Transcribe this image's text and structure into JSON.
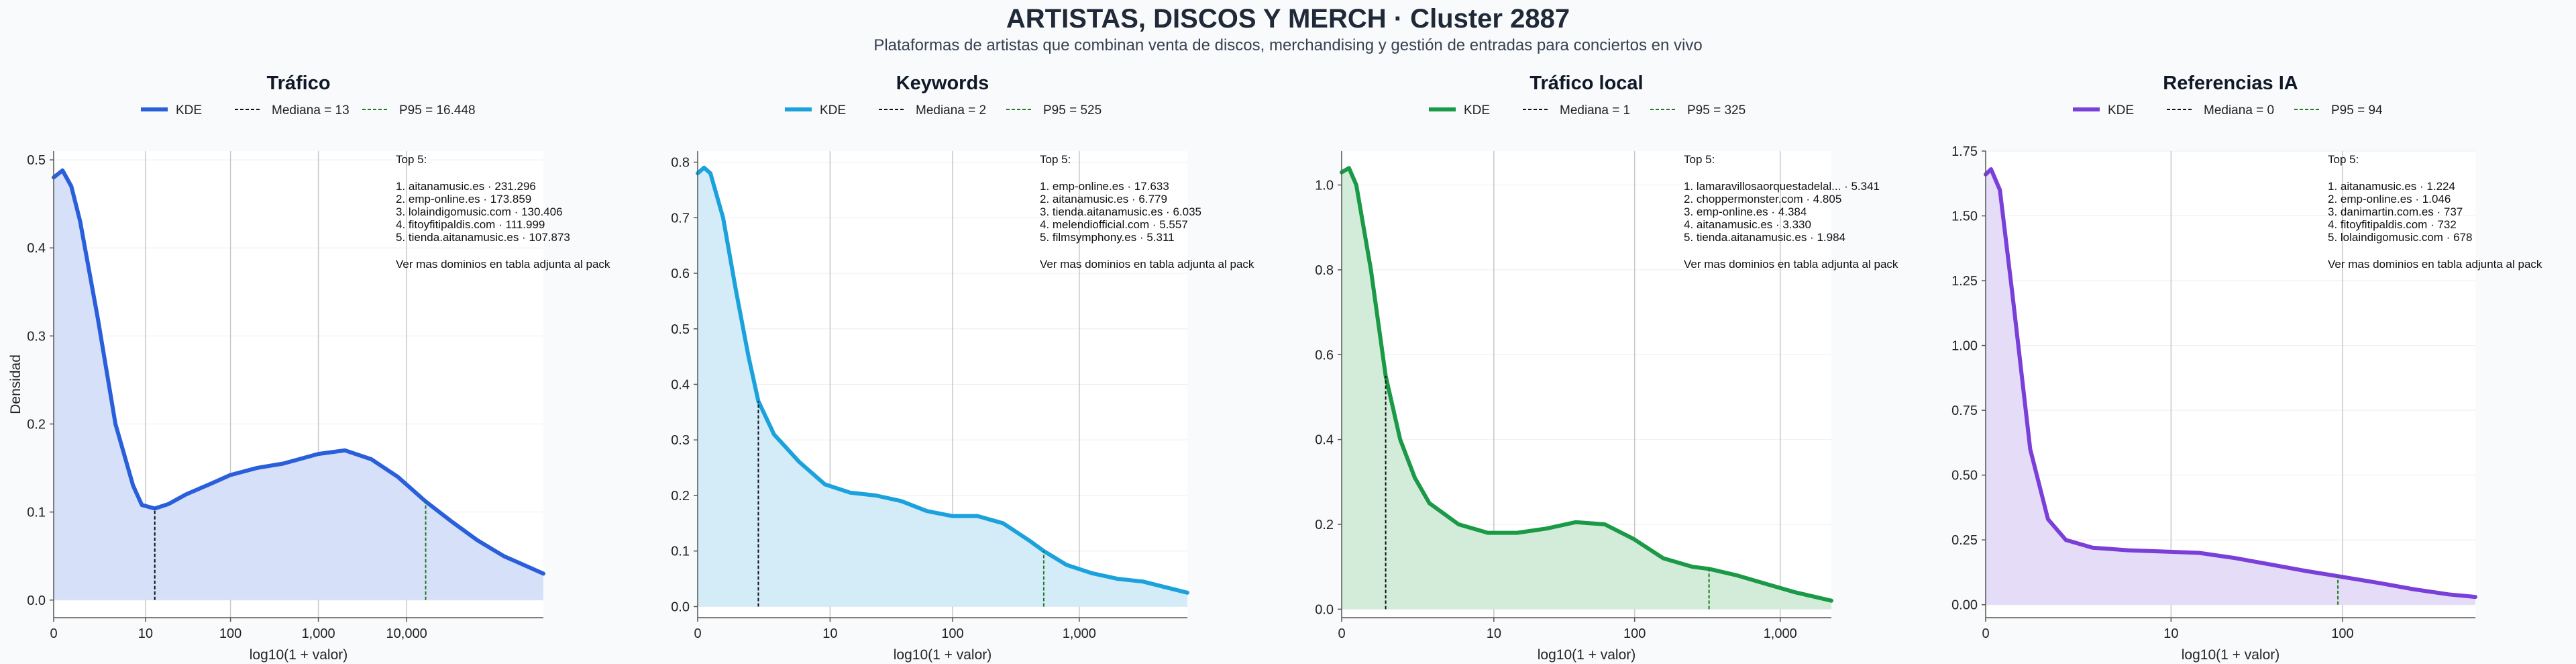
{
  "title": "ARTISTAS, DISCOS Y MERCH · Cluster 2887",
  "subtitle": "Plataformas de artistas que combinan venta de discos, merchandising y gestión de entradas para conciertos en vivo",
  "chart_data": [
    {
      "type": "area",
      "title": "Tráfico",
      "xlabel": "log10(1 + valor)",
      "ylabel": "Densidad",
      "color": "#2a5fdb",
      "fill": "#d6e0f8",
      "p95_color": "#1e7a1e",
      "xlim": [
        0,
        5.55
      ],
      "ylim": [
        -0.02,
        0.51
      ],
      "x_ticks": [
        {
          "v": 0,
          "label": "0"
        },
        {
          "v": 1.041,
          "label": "10"
        },
        {
          "v": 2.004,
          "label": "100"
        },
        {
          "v": 3.0,
          "label": "1,000"
        },
        {
          "v": 4.0,
          "label": "10,000"
        }
      ],
      "y_ticks": [
        0.0,
        0.1,
        0.2,
        0.3,
        0.4,
        0.5
      ],
      "y_tick_labels": [
        "0.0",
        "0.1",
        "0.2",
        "0.3",
        "0.4",
        "0.5"
      ],
      "legend": {
        "kde": "KDE",
        "median": "Mediana = 13",
        "p95": "P95 = 16.448"
      },
      "median_x": 1.146,
      "p95_x": 4.216,
      "kde_x": [
        0,
        0.1,
        0.2,
        0.3,
        0.5,
        0.7,
        0.9,
        1.0,
        1.146,
        1.3,
        1.5,
        1.8,
        2.0,
        2.3,
        2.6,
        3.0,
        3.3,
        3.6,
        3.9,
        4.216,
        4.5,
        4.8,
        5.1,
        5.55
      ],
      "kde_y": [
        0.48,
        0.488,
        0.47,
        0.43,
        0.32,
        0.2,
        0.13,
        0.108,
        0.104,
        0.109,
        0.12,
        0.133,
        0.142,
        0.15,
        0.155,
        0.166,
        0.17,
        0.16,
        0.14,
        0.112,
        0.09,
        0.068,
        0.05,
        0.03
      ],
      "top5": {
        "heading": "Top 5:",
        "items": [
          "1. aitanamusic.es · 231.296",
          "2. emp-online.es · 173.859",
          "3. lolaindigomusic.com · 130.406",
          "4. fitoyfitipaldis.com · 111.999",
          "5. tienda.aitanamusic.es · 107.873"
        ],
        "footer": "Ver mas dominios en tabla adjunta al pack"
      }
    },
    {
      "type": "area",
      "title": "Keywords",
      "xlabel": "log10(1 + valor)",
      "ylabel": "",
      "color": "#1ba2dc",
      "fill": "#d3ecf8",
      "p95_color": "#1e7a1e",
      "xlim": [
        0,
        3.85
      ],
      "ylim": [
        -0.02,
        0.82
      ],
      "x_ticks": [
        {
          "v": 0,
          "label": "0"
        },
        {
          "v": 1.041,
          "label": "10"
        },
        {
          "v": 2.004,
          "label": "100"
        },
        {
          "v": 3.0,
          "label": "1,000"
        }
      ],
      "y_ticks": [
        0.0,
        0.1,
        0.2,
        0.3,
        0.4,
        0.5,
        0.6,
        0.7,
        0.8
      ],
      "y_tick_labels": [
        "0.0",
        "0.1",
        "0.2",
        "0.3",
        "0.4",
        "0.5",
        "0.6",
        "0.7",
        "0.8"
      ],
      "legend": {
        "kde": "KDE",
        "median": "Mediana = 2",
        "p95": "P95 = 525"
      },
      "median_x": 0.477,
      "p95_x": 2.721,
      "kde_x": [
        0,
        0.05,
        0.1,
        0.2,
        0.3,
        0.4,
        0.477,
        0.6,
        0.8,
        1.0,
        1.2,
        1.4,
        1.6,
        1.8,
        2.0,
        2.2,
        2.4,
        2.6,
        2.721,
        2.9,
        3.1,
        3.3,
        3.5,
        3.85
      ],
      "kde_y": [
        0.78,
        0.79,
        0.78,
        0.7,
        0.57,
        0.45,
        0.37,
        0.31,
        0.26,
        0.22,
        0.205,
        0.2,
        0.19,
        0.172,
        0.163,
        0.163,
        0.15,
        0.12,
        0.1,
        0.075,
        0.06,
        0.05,
        0.045,
        0.025
      ],
      "top5": {
        "heading": "Top 5:",
        "items": [
          "1. emp-online.es · 17.633",
          "2. aitanamusic.es · 6.779",
          "3. tienda.aitanamusic.es · 6.035",
          "4. melendiofficial.com · 5.557",
          "5. filmsymphony.es · 5.311"
        ],
        "footer": "Ver mas dominios en tabla adjunta al pack"
      }
    },
    {
      "type": "area",
      "title": "Tráfico local",
      "xlabel": "log10(1 + valor)",
      "ylabel": "",
      "color": "#1a9a47",
      "fill": "#d3ecd9",
      "p95_color": "#1e7a1e",
      "xlim": [
        0,
        3.35
      ],
      "ylim": [
        -0.02,
        1.08
      ],
      "x_ticks": [
        {
          "v": 0,
          "label": "0"
        },
        {
          "v": 1.041,
          "label": "10"
        },
        {
          "v": 2.004,
          "label": "100"
        },
        {
          "v": 3.0,
          "label": "1,000"
        }
      ],
      "y_ticks": [
        0.0,
        0.2,
        0.4,
        0.6,
        0.8,
        1.0
      ],
      "y_tick_labels": [
        "0.0",
        "0.2",
        "0.4",
        "0.6",
        "0.8",
        "1.0"
      ],
      "legend": {
        "kde": "KDE",
        "median": "Mediana = 1",
        "p95": "P95 = 325"
      },
      "median_x": 0.301,
      "p95_x": 2.513,
      "kde_x": [
        0,
        0.05,
        0.1,
        0.2,
        0.301,
        0.4,
        0.5,
        0.6,
        0.8,
        1.0,
        1.2,
        1.4,
        1.6,
        1.8,
        2.0,
        2.2,
        2.4,
        2.513,
        2.7,
        2.9,
        3.1,
        3.35
      ],
      "kde_y": [
        1.03,
        1.04,
        1.0,
        0.8,
        0.55,
        0.4,
        0.31,
        0.25,
        0.2,
        0.18,
        0.18,
        0.19,
        0.205,
        0.2,
        0.165,
        0.12,
        0.1,
        0.095,
        0.08,
        0.06,
        0.04,
        0.02
      ],
      "top5": {
        "heading": "Top 5:",
        "items": [
          "1. lamaravillosaorquestadelal... · 5.341",
          "2. choppermonster.com · 4.805",
          "3. emp-online.es · 4.384",
          "4. aitanamusic.es · 3.330",
          "5. tienda.aitanamusic.es · 1.984"
        ],
        "footer": "Ver mas dominios en tabla adjunta al pack"
      }
    },
    {
      "type": "area",
      "title": "Referencias IA",
      "xlabel": "log10(1 + valor)",
      "ylabel": "",
      "color": "#7a3fd9",
      "fill": "#e5dcf7",
      "p95_color": "#1e7a1e",
      "xlim": [
        0,
        2.75
      ],
      "ylim": [
        -0.05,
        1.75
      ],
      "x_ticks": [
        {
          "v": 0,
          "label": "0"
        },
        {
          "v": 1.041,
          "label": "10"
        },
        {
          "v": 2.004,
          "label": "100"
        }
      ],
      "y_ticks": [
        0.0,
        0.25,
        0.5,
        0.75,
        1.0,
        1.25,
        1.5,
        1.75
      ],
      "y_tick_labels": [
        "0.00",
        "0.25",
        "0.50",
        "0.75",
        "1.00",
        "1.25",
        "1.50",
        "1.75"
      ],
      "legend": {
        "kde": "KDE",
        "median": "Mediana = 0",
        "p95": "P95 = 94"
      },
      "median_x": 0.0,
      "p95_x": 1.978,
      "kde_x": [
        0,
        0.03,
        0.08,
        0.15,
        0.25,
        0.35,
        0.45,
        0.6,
        0.8,
        1.0,
        1.2,
        1.4,
        1.6,
        1.8,
        1.978,
        2.2,
        2.4,
        2.6,
        2.75
      ],
      "kde_y": [
        1.66,
        1.68,
        1.6,
        1.2,
        0.6,
        0.33,
        0.25,
        0.22,
        0.21,
        0.205,
        0.2,
        0.18,
        0.155,
        0.13,
        0.11,
        0.085,
        0.06,
        0.04,
        0.03
      ],
      "top5": {
        "heading": "Top 5:",
        "items": [
          "1. aitanamusic.es · 1.224",
          "2. emp-online.es · 1.046",
          "3. danimartin.com.es · 737",
          "4. fitoyfitipaldis.com · 732",
          "5. lolaindigomusic.com · 678"
        ],
        "footer": "Ver mas dominios en tabla adjunta al pack"
      }
    }
  ]
}
